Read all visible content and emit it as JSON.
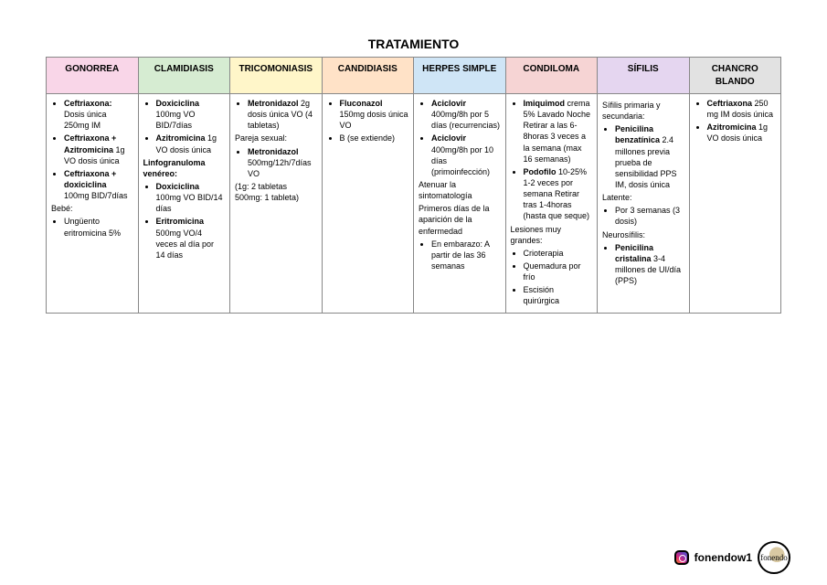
{
  "title": "TRATAMIENTO",
  "columns": [
    {
      "label": "GONORREA",
      "bg": "#f9d6e8"
    },
    {
      "label": "CLAMIDIASIS",
      "bg": "#d6ecd2"
    },
    {
      "label": "TRICOMONIASIS",
      "bg": "#fff6c9"
    },
    {
      "label": "CANDIDIASIS",
      "bg": "#ffe2c7"
    },
    {
      "label": "HERPES SIMPLE",
      "bg": "#cfe5f6"
    },
    {
      "label": "CONDILOMA",
      "bg": "#f6d4d4"
    },
    {
      "label": "SÍFILIS",
      "bg": "#e5d6f0"
    },
    {
      "label": "CHANCRO BLANDO",
      "bg": "#e2e2e2"
    }
  ],
  "cells": {
    "gonorrea": {
      "items": [
        {
          "bold": "Ceftriaxona:",
          "rest": " Dosis única 250mg IM"
        },
        {
          "bold": "Ceftriaxona + Azitromicina",
          "rest": " 1g VO dosis única"
        },
        {
          "bold": "Ceftriaxona + doxiciclina",
          "rest": " 100mg BID/7días"
        }
      ],
      "note1": "Bebé:",
      "items2": [
        {
          "plain": "Ungüento eritromicina 5%"
        }
      ]
    },
    "clamidiasis": {
      "items": [
        {
          "bold": "Doxiciclina",
          "rest": " 100mg VO BID/7días"
        },
        {
          "bold": "Azitromicina",
          "rest": " 1g VO dosis única"
        }
      ],
      "sub": "Linfogranuloma venéreo:",
      "items2": [
        {
          "bold": "Doxiciclina",
          "rest": " 100mg VO BID/14 días"
        },
        {
          "bold": "Eritromicina",
          "rest": " 500mg VO/4 veces al día por 14 días"
        }
      ]
    },
    "tricomoniasis": {
      "items": [
        {
          "bold": "Metronidazol",
          "rest": " 2g dosis única VO (4 tabletas)"
        }
      ],
      "note1": "Pareja sexual:",
      "items2": [
        {
          "bold": "Metronidazol",
          "rest": " 500mg/12h/7días VO"
        }
      ],
      "note2": "(1g: 2 tabletas 500mg: 1 tableta)"
    },
    "candidiasis": {
      "items": [
        {
          "bold": "Fluconazol",
          "rest": " 150mg dosis única VO"
        },
        {
          "plain": "B (se extiende)"
        }
      ]
    },
    "herpes": {
      "items": [
        {
          "bold": "Aciclovir",
          "rest": " 400mg/8h por 5 días (recurrencias)"
        },
        {
          "bold": "Aciclovir",
          "rest": " 400mg/8h por 10 días (primoinfección)"
        }
      ],
      "note1": "Atenuar la sintomatología",
      "note2": "Primeros días de la aparición de la enfermedad",
      "items2": [
        {
          "plain": "En embarazo: A partir de las 36 semanas"
        }
      ]
    },
    "condiloma": {
      "items": [
        {
          "bold": "Imiquimod",
          "rest": " crema 5% Lavado Noche Retirar a las 6-8horas 3 veces a la semana (max 16 semanas)"
        },
        {
          "bold": "Podofilo",
          "rest": " 10-25% 1-2 veces por semana Retirar tras 1-4horas (hasta que seque)"
        }
      ],
      "note1": "Lesiones muy grandes:",
      "items2": [
        {
          "plain": "Crioterapia"
        },
        {
          "plain": "Quemadura por frío"
        },
        {
          "plain": "Escisión quirúrgica"
        }
      ]
    },
    "sifilis": {
      "note0": "Sífilis primaria y secundaria:",
      "items": [
        {
          "bold": "Penicilina benzatínica",
          "rest": " 2.4 millones previa prueba de sensibilidad PPS IM, dosis única"
        }
      ],
      "note1": "Latente:",
      "items2": [
        {
          "plain": "Por 3 semanas (3 dosis)"
        }
      ],
      "note2": "Neurosífilis:",
      "items3": [
        {
          "bold": "Penicilina cristalina",
          "rest": " 3-4 millones de UI/día (PPS)"
        }
      ]
    },
    "chancro": {
      "items": [
        {
          "bold": "Ceftriaxona",
          "rest": " 250 mg IM dosis única"
        },
        {
          "bold": "Azitromicina",
          "rest": " 1g VO dosis única"
        }
      ]
    }
  },
  "footer": {
    "handle": "fonendow1",
    "logo_text": "fonendo"
  }
}
